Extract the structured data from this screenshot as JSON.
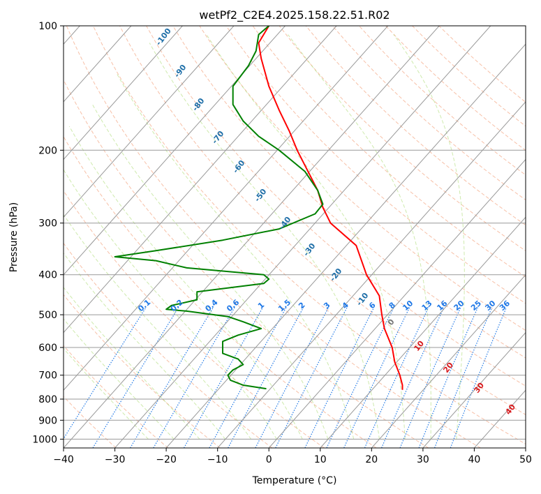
{
  "chart_data": {
    "type": "skew-t",
    "title": "wetPf2_C2E4.2025.158.22.51.R02",
    "xlabel": "Temperature (°C)",
    "ylabel": "Pressure (hPa)",
    "xlim": [
      -40,
      50
    ],
    "ylim": [
      1050,
      100
    ],
    "x_scale": "linear",
    "y_scale": "log",
    "x_ticks": [
      -40,
      -30,
      -20,
      -10,
      0,
      10,
      20,
      30,
      40,
      50
    ],
    "x_tick_labels": [
      "−40",
      "−30",
      "−20",
      "−10",
      "0",
      "10",
      "20",
      "30",
      "40",
      "50"
    ],
    "y_ticks": [
      100,
      200,
      300,
      400,
      500,
      600,
      700,
      800,
      900,
      1000
    ],
    "y_tick_labels": [
      "100",
      "200",
      "300",
      "400",
      "500",
      "600",
      "700",
      "800",
      "900",
      "1000"
    ],
    "grid": true,
    "skew_isotherms_c": [
      -120,
      -110,
      -100,
      -90,
      -80,
      -70,
      -60,
      -50,
      -40,
      -30,
      -20,
      -10,
      0,
      10,
      20,
      30,
      40,
      50
    ],
    "dry_adiabat_labels": [
      "-100",
      "-90",
      "-80",
      "-70",
      "-60",
      "-50",
      "-40",
      "-30",
      "-20",
      "-10",
      "0",
      "10",
      "20",
      "30",
      "40"
    ],
    "mixing_ratio_labels": [
      "0.1",
      "0.2",
      "0.4",
      "0.6",
      "1",
      "1.5",
      "2",
      "3",
      "4",
      "6",
      "8",
      "10",
      "13",
      "16",
      "20",
      "25",
      "30",
      "36"
    ],
    "colors": {
      "temperature": "#ff0000",
      "dewpoint": "#008000",
      "isotherm": "#999999",
      "isobar": "#999999",
      "dry_adiabat": "#f4a582",
      "moist_adiabat": "#a6d96a",
      "mixing_ratio": "#1f78e6",
      "dry_label_cold": "#1f6fa8",
      "dry_label_warm": "#d7191c",
      "zero_label": "#777777"
    },
    "series": [
      {
        "name": "",
        "kind": "temperature",
        "points": [
          {
            "p": 100,
            "x": 0
          },
          {
            "p": 110,
            "x": -2
          },
          {
            "p": 120,
            "x": -1.5
          },
          {
            "p": 140,
            "x": 0
          },
          {
            "p": 160,
            "x": 2
          },
          {
            "p": 180,
            "x": 4
          },
          {
            "p": 200,
            "x": 5.5
          },
          {
            "p": 230,
            "x": 8
          },
          {
            "p": 250,
            "x": 9.5
          },
          {
            "p": 275,
            "x": 10.5
          },
          {
            "p": 300,
            "x": 12
          },
          {
            "p": 340,
            "x": 17
          },
          {
            "p": 400,
            "x": 19
          },
          {
            "p": 450,
            "x": 21.5
          },
          {
            "p": 500,
            "x": 22
          },
          {
            "p": 540,
            "x": 22.5
          },
          {
            "p": 600,
            "x": 24
          },
          {
            "p": 650,
            "x": 24.5
          },
          {
            "p": 700,
            "x": 25.5
          },
          {
            "p": 740,
            "x": 26
          },
          {
            "p": 760,
            "x": 26
          }
        ]
      },
      {
        "name": "",
        "kind": "dewpoint",
        "points": [
          {
            "p": 100,
            "x": 0
          },
          {
            "p": 105,
            "x": -2
          },
          {
            "p": 115,
            "x": -2.5
          },
          {
            "p": 125,
            "x": -4
          },
          {
            "p": 140,
            "x": -7
          },
          {
            "p": 155,
            "x": -7
          },
          {
            "p": 170,
            "x": -5
          },
          {
            "p": 185,
            "x": -2
          },
          {
            "p": 200,
            "x": 2
          },
          {
            "p": 225,
            "x": 7
          },
          {
            "p": 250,
            "x": 9.5
          },
          {
            "p": 270,
            "x": 10.5
          },
          {
            "p": 285,
            "x": 9
          },
          {
            "p": 310,
            "x": 2
          },
          {
            "p": 330,
            "x": -9
          },
          {
            "p": 350,
            "x": -22
          },
          {
            "p": 362,
            "x": -30
          },
          {
            "p": 370,
            "x": -22
          },
          {
            "p": 385,
            "x": -16
          },
          {
            "p": 400,
            "x": -1
          },
          {
            "p": 410,
            "x": 0
          },
          {
            "p": 420,
            "x": -1
          },
          {
            "p": 440,
            "x": -14
          },
          {
            "p": 460,
            "x": -14
          },
          {
            "p": 475,
            "x": -19
          },
          {
            "p": 485,
            "x": -20
          },
          {
            "p": 490,
            "x": -16
          },
          {
            "p": 505,
            "x": -8
          },
          {
            "p": 520,
            "x": -5
          },
          {
            "p": 540,
            "x": -1.5
          },
          {
            "p": 560,
            "x": -6
          },
          {
            "p": 580,
            "x": -9
          },
          {
            "p": 600,
            "x": -9
          },
          {
            "p": 620,
            "x": -9
          },
          {
            "p": 640,
            "x": -6
          },
          {
            "p": 660,
            "x": -5
          },
          {
            "p": 680,
            "x": -7
          },
          {
            "p": 700,
            "x": -8
          },
          {
            "p": 720,
            "x": -7.5
          },
          {
            "p": 740,
            "x": -5
          },
          {
            "p": 755,
            "x": -0.5
          }
        ]
      }
    ]
  }
}
